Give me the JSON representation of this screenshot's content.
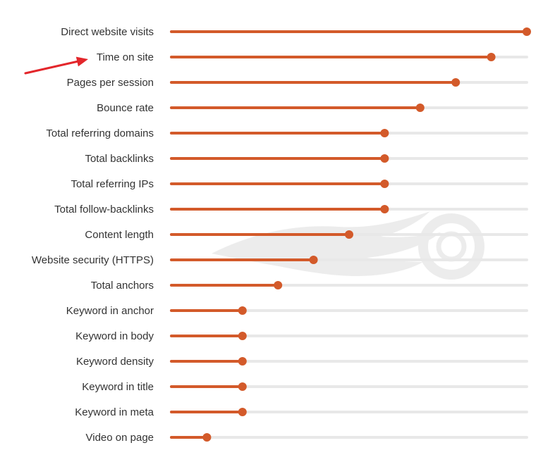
{
  "chart_data": {
    "type": "lollipop",
    "title": "",
    "xlabel": "",
    "ylabel": "",
    "xlim": [
      0,
      10
    ],
    "grid": false,
    "legend": "none",
    "colors": {
      "series": "#d35a2a",
      "track": "#e8e8e8",
      "label": "#333333",
      "annotation_arrow": "#e3262b",
      "watermark": "#ececec"
    },
    "categories": [
      "Direct website visits",
      "Time on site",
      "Pages per session",
      "Bounce rate",
      "Total referring domains",
      "Total backlinks",
      "Total referring IPs",
      "Total follow-backlinks",
      "Content length",
      "Website security (HTTPS)",
      "Total anchors",
      "Keyword in anchor",
      "Keyword in body",
      "Keyword density",
      "Keyword in title",
      "Keyword in meta",
      "Video on page"
    ],
    "values": [
      10,
      9,
      8,
      7,
      6,
      6,
      6,
      6,
      5,
      4,
      3,
      2,
      2,
      2,
      2,
      2,
      1
    ],
    "annotations": [
      {
        "type": "arrow",
        "target_category": "Time on site"
      }
    ],
    "watermark": "flame-logo"
  }
}
